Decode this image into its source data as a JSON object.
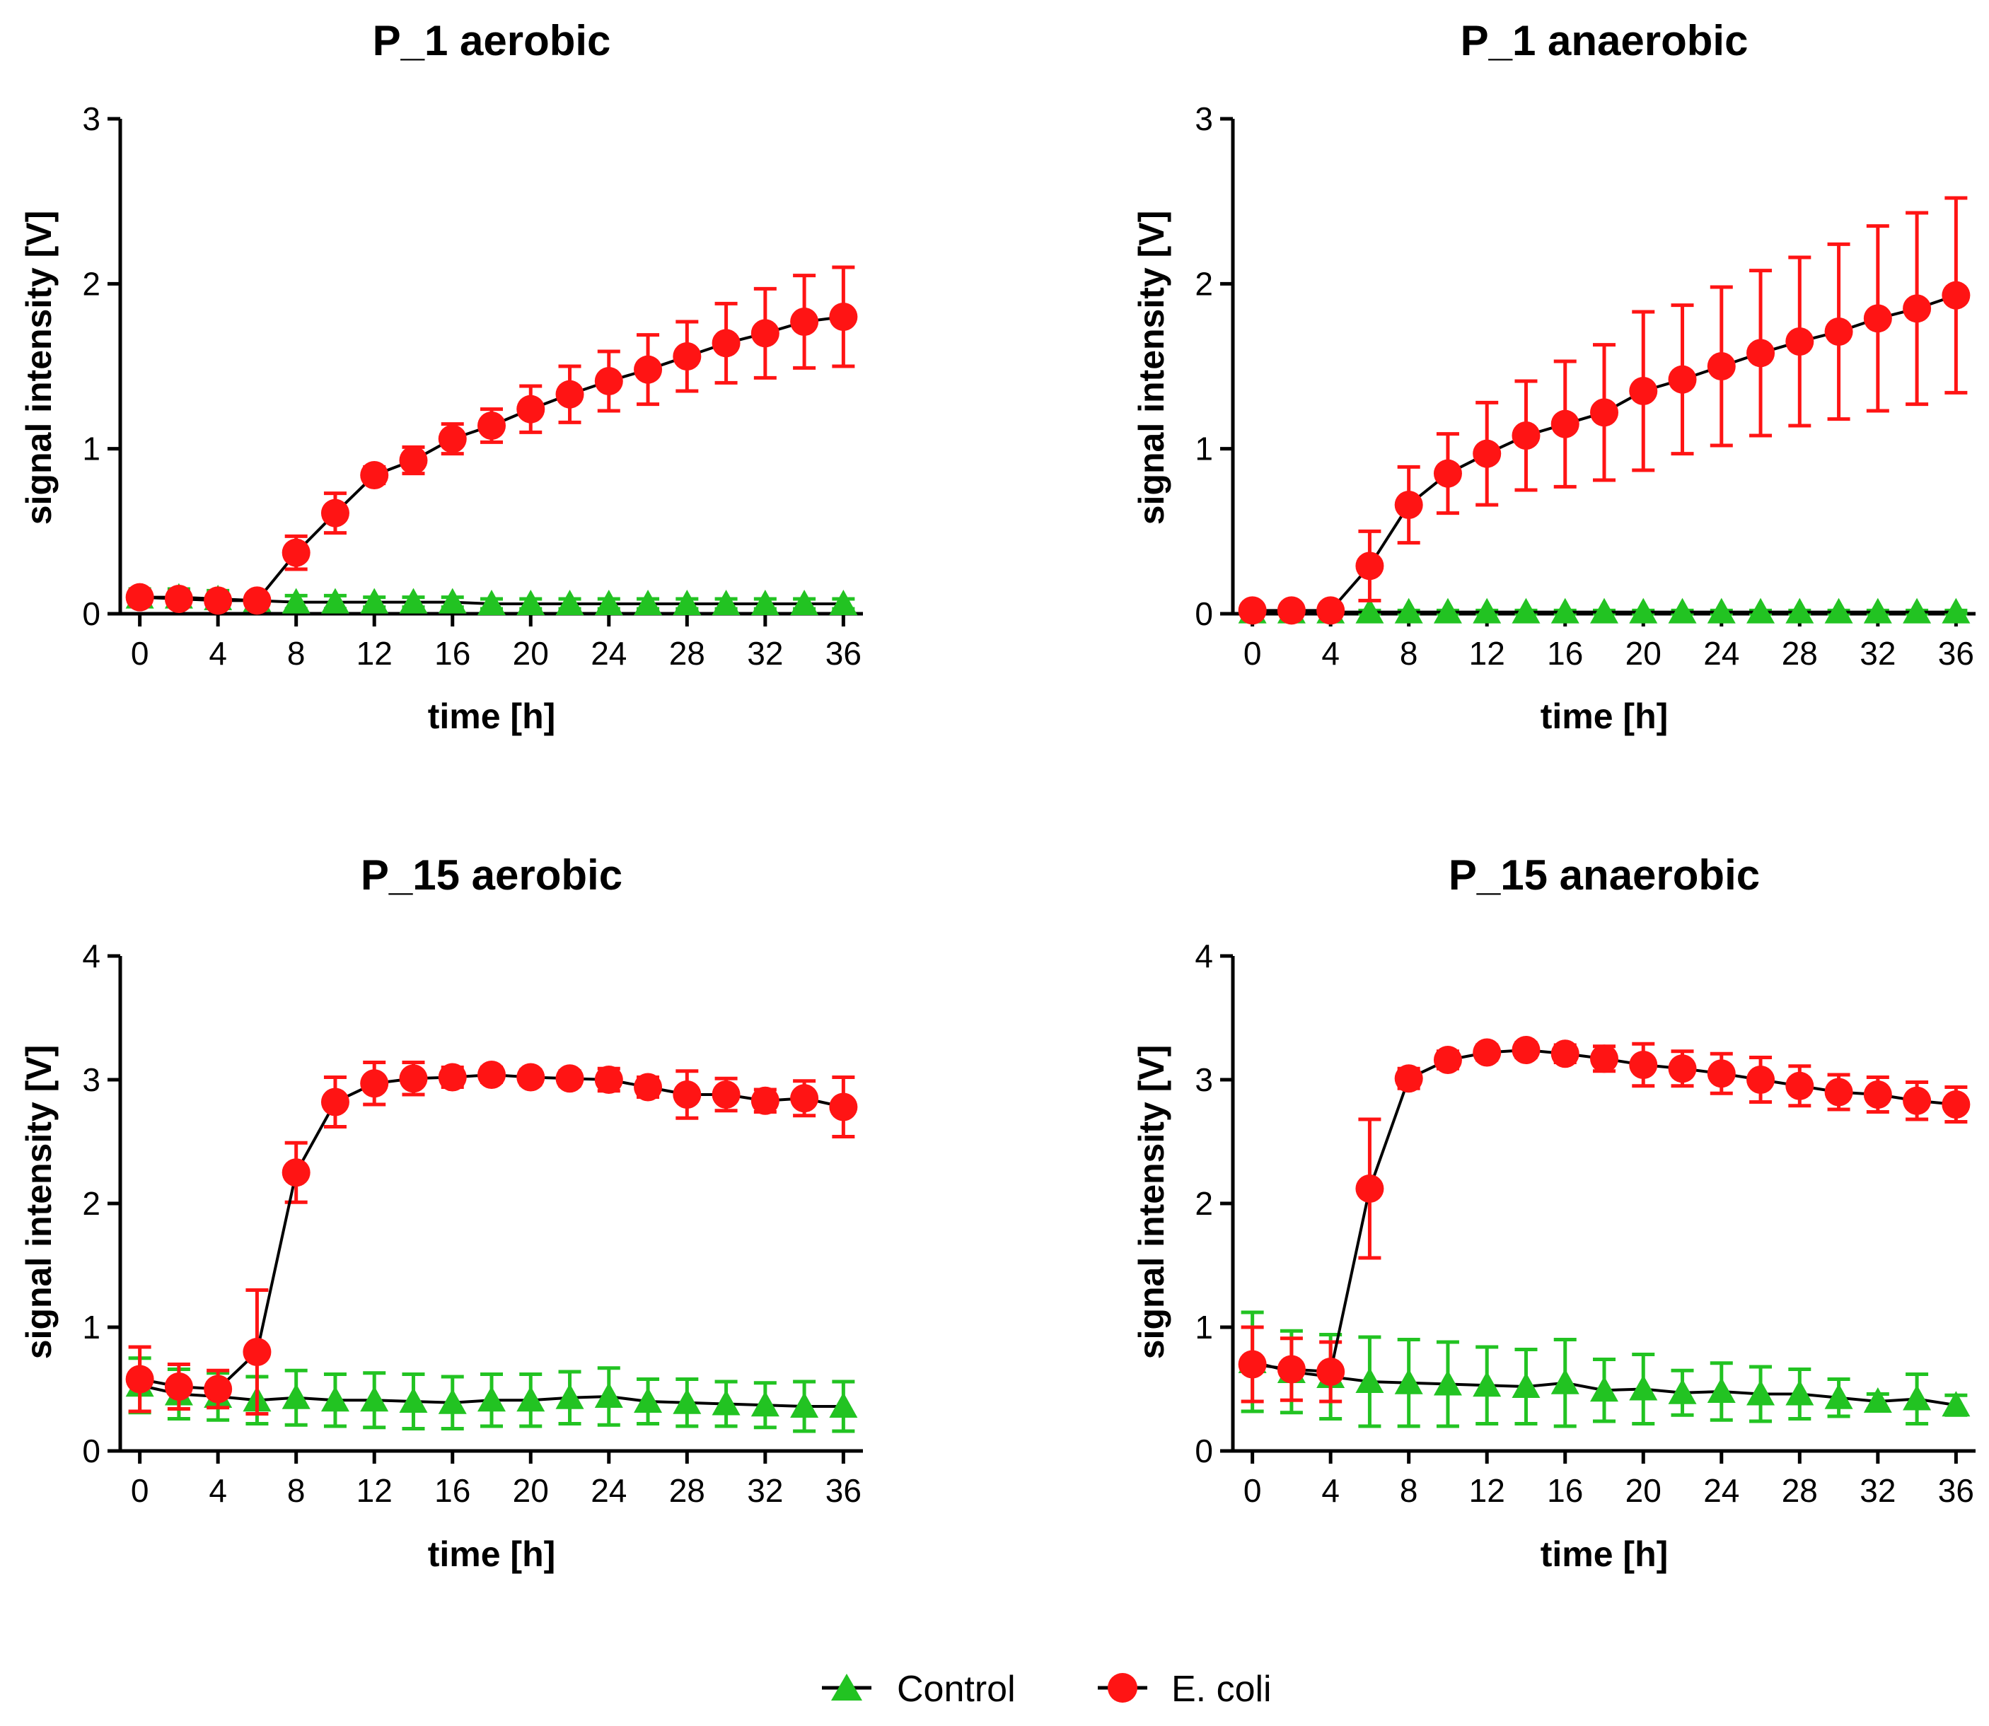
{
  "colors": {
    "control": "#22c322",
    "ecoli": "#ff1414",
    "line": "#000000",
    "axis": "#000000"
  },
  "legend": {
    "items": [
      {
        "key": "control",
        "label": "Control",
        "marker": "triangle"
      },
      {
        "key": "ecoli",
        "label": "E. coli",
        "marker": "circle"
      }
    ],
    "placement": "bottom-center"
  },
  "chart_data": [
    {
      "type": "line",
      "title": "P_1 aerobic",
      "xlabel": "time [h]",
      "ylabel": "signal intensity [V]",
      "xlim": [
        -1,
        37
      ],
      "ylim": [
        0,
        3
      ],
      "xticks": [
        0,
        4,
        8,
        12,
        16,
        20,
        24,
        28,
        32,
        36
      ],
      "yticks": [
        0,
        1,
        2,
        3
      ],
      "x": [
        0,
        2,
        4,
        6,
        8,
        10,
        12,
        14,
        16,
        18,
        20,
        22,
        24,
        26,
        28,
        30,
        32,
        34,
        36
      ],
      "series": [
        {
          "name": "Control",
          "key": "control",
          "marker": "triangle",
          "values": [
            0.1,
            0.1,
            0.09,
            0.08,
            0.07,
            0.07,
            0.07,
            0.07,
            0.07,
            0.06,
            0.06,
            0.06,
            0.06,
            0.06,
            0.06,
            0.06,
            0.06,
            0.06,
            0.06
          ],
          "errors": [
            0.05,
            0.05,
            0.05,
            0.04,
            0.04,
            0.04,
            0.03,
            0.03,
            0.03,
            0.03,
            0.03,
            0.03,
            0.03,
            0.03,
            0.03,
            0.03,
            0.03,
            0.03,
            0.03
          ]
        },
        {
          "name": "E. coli",
          "key": "ecoli",
          "marker": "circle",
          "values": [
            0.1,
            0.09,
            0.08,
            0.08,
            0.37,
            0.61,
            0.84,
            0.93,
            1.06,
            1.14,
            1.24,
            1.33,
            1.41,
            1.48,
            1.56,
            1.64,
            1.7,
            1.77,
            1.8
          ],
          "errors": [
            0.03,
            0.03,
            0.03,
            0.03,
            0.1,
            0.12,
            0.05,
            0.08,
            0.09,
            0.1,
            0.14,
            0.17,
            0.18,
            0.21,
            0.21,
            0.24,
            0.27,
            0.28,
            0.3
          ]
        }
      ]
    },
    {
      "type": "line",
      "title": "P_1 anaerobic",
      "xlabel": "time [h]",
      "ylabel": "signal intensity [V]",
      "xlim": [
        -1,
        37
      ],
      "ylim": [
        0,
        3
      ],
      "xticks": [
        0,
        4,
        8,
        12,
        16,
        20,
        24,
        28,
        32,
        36
      ],
      "yticks": [
        0,
        1,
        2,
        3
      ],
      "x": [
        0,
        2,
        4,
        6,
        8,
        10,
        12,
        14,
        16,
        18,
        20,
        22,
        24,
        26,
        28,
        30,
        32,
        34,
        36
      ],
      "series": [
        {
          "name": "Control",
          "key": "control",
          "marker": "triangle",
          "values": [
            0.01,
            0.01,
            0.01,
            0.01,
            0.01,
            0.01,
            0.01,
            0.01,
            0.01,
            0.01,
            0.01,
            0.01,
            0.01,
            0.01,
            0.01,
            0.01,
            0.01,
            0.01,
            0.01
          ],
          "errors": [
            0.01,
            0.01,
            0.01,
            0.01,
            0.01,
            0.01,
            0.01,
            0.01,
            0.01,
            0.01,
            0.01,
            0.01,
            0.01,
            0.01,
            0.01,
            0.01,
            0.01,
            0.01,
            0.01
          ]
        },
        {
          "name": "E. coli",
          "key": "ecoli",
          "marker": "circle",
          "values": [
            0.02,
            0.02,
            0.02,
            0.29,
            0.66,
            0.85,
            0.97,
            1.08,
            1.15,
            1.22,
            1.35,
            1.42,
            1.5,
            1.58,
            1.65,
            1.71,
            1.79,
            1.85,
            1.93
          ],
          "errors": [
            0.02,
            0.02,
            0.02,
            0.21,
            0.23,
            0.24,
            0.31,
            0.33,
            0.38,
            0.41,
            0.48,
            0.45,
            0.48,
            0.5,
            0.51,
            0.53,
            0.56,
            0.58,
            0.59
          ]
        }
      ]
    },
    {
      "type": "line",
      "title": "P_15 aerobic",
      "xlabel": "time [h]",
      "ylabel": "signal intensity [V]",
      "xlim": [
        -1,
        37
      ],
      "ylim": [
        0,
        4
      ],
      "xticks": [
        0,
        4,
        8,
        12,
        16,
        20,
        24,
        28,
        32,
        36
      ],
      "yticks": [
        0,
        1,
        2,
        3,
        4
      ],
      "x": [
        0,
        2,
        4,
        6,
        8,
        10,
        12,
        14,
        16,
        18,
        20,
        22,
        24,
        26,
        28,
        30,
        32,
        34,
        36
      ],
      "series": [
        {
          "name": "Control",
          "key": "control",
          "marker": "triangle",
          "values": [
            0.53,
            0.46,
            0.44,
            0.41,
            0.43,
            0.41,
            0.41,
            0.4,
            0.39,
            0.41,
            0.41,
            0.43,
            0.44,
            0.4,
            0.39,
            0.38,
            0.37,
            0.36,
            0.36
          ],
          "errors": [
            0.22,
            0.2,
            0.19,
            0.19,
            0.22,
            0.21,
            0.22,
            0.22,
            0.21,
            0.21,
            0.21,
            0.21,
            0.23,
            0.18,
            0.19,
            0.18,
            0.18,
            0.2,
            0.2
          ]
        },
        {
          "name": "E. coli",
          "key": "ecoli",
          "marker": "circle",
          "values": [
            0.58,
            0.52,
            0.5,
            0.8,
            2.25,
            2.82,
            2.97,
            3.01,
            3.02,
            3.04,
            3.02,
            3.01,
            3.0,
            2.94,
            2.88,
            2.88,
            2.83,
            2.85,
            2.78
          ],
          "errors": [
            0.26,
            0.18,
            0.15,
            0.5,
            0.24,
            0.2,
            0.17,
            0.13,
            0.08,
            0.06,
            0.06,
            0.06,
            0.09,
            0.08,
            0.19,
            0.13,
            0.09,
            0.14,
            0.24
          ]
        }
      ]
    },
    {
      "type": "line",
      "title": "P_15 anaerobic",
      "xlabel": "time [h]",
      "ylabel": "signal intensity [V]",
      "xlim": [
        -1,
        37
      ],
      "ylim": [
        0,
        4
      ],
      "xticks": [
        0,
        4,
        8,
        12,
        16,
        20,
        24,
        28,
        32,
        36
      ],
      "yticks": [
        0,
        1,
        2,
        3,
        4
      ],
      "x": [
        0,
        2,
        4,
        6,
        8,
        10,
        12,
        14,
        16,
        18,
        20,
        22,
        24,
        26,
        28,
        30,
        32,
        34,
        36
      ],
      "series": [
        {
          "name": "Control",
          "key": "control",
          "marker": "triangle",
          "values": [
            0.72,
            0.64,
            0.6,
            0.56,
            0.55,
            0.54,
            0.53,
            0.52,
            0.55,
            0.49,
            0.5,
            0.47,
            0.48,
            0.46,
            0.46,
            0.43,
            0.4,
            0.42,
            0.37
          ],
          "errors": [
            0.4,
            0.33,
            0.34,
            0.36,
            0.35,
            0.34,
            0.31,
            0.3,
            0.35,
            0.25,
            0.28,
            0.18,
            0.23,
            0.22,
            0.2,
            0.15,
            0.06,
            0.2,
            0.08
          ]
        },
        {
          "name": "E. coli",
          "key": "ecoli",
          "marker": "circle",
          "values": [
            0.7,
            0.66,
            0.64,
            2.12,
            3.01,
            3.16,
            3.22,
            3.24,
            3.21,
            3.17,
            3.12,
            3.09,
            3.05,
            3.0,
            2.95,
            2.9,
            2.88,
            2.83,
            2.8
          ],
          "errors": [
            0.3,
            0.25,
            0.24,
            0.56,
            0.08,
            0.07,
            0.06,
            0.06,
            0.07,
            0.1,
            0.17,
            0.14,
            0.16,
            0.18,
            0.16,
            0.14,
            0.14,
            0.15,
            0.14
          ]
        }
      ]
    }
  ]
}
